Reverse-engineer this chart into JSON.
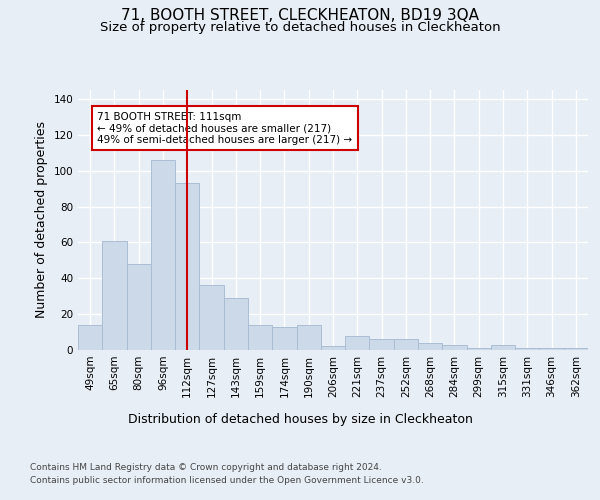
{
  "title_line1": "71, BOOTH STREET, CLECKHEATON, BD19 3QA",
  "title_line2": "Size of property relative to detached houses in Cleckheaton",
  "xlabel": "Distribution of detached houses by size in Cleckheaton",
  "ylabel": "Number of detached properties",
  "footer_line1": "Contains HM Land Registry data © Crown copyright and database right 2024.",
  "footer_line2": "Contains public sector information licensed under the Open Government Licence v3.0.",
  "categories": [
    "49sqm",
    "65sqm",
    "80sqm",
    "96sqm",
    "112sqm",
    "127sqm",
    "143sqm",
    "159sqm",
    "174sqm",
    "190sqm",
    "206sqm",
    "221sqm",
    "237sqm",
    "252sqm",
    "268sqm",
    "284sqm",
    "299sqm",
    "315sqm",
    "331sqm",
    "346sqm",
    "362sqm"
  ],
  "values": [
    14,
    61,
    48,
    106,
    93,
    36,
    29,
    14,
    13,
    14,
    2,
    8,
    6,
    6,
    4,
    3,
    1,
    3,
    1,
    1,
    1
  ],
  "bar_color": "#ccd9e8",
  "bar_edge_color": "#aabdd4",
  "vline_x_index": 4,
  "vline_color": "#cc0000",
  "annotation_text": "71 BOOTH STREET: 111sqm\n← 49% of detached houses are smaller (217)\n49% of semi-detached houses are larger (217) →",
  "annotation_box_color": "#ffffff",
  "annotation_box_edge_color": "#cc0000",
  "ylim": [
    0,
    145
  ],
  "yticks": [
    0,
    20,
    40,
    60,
    80,
    100,
    120,
    140
  ],
  "background_color": "#e8eef5",
  "plot_background_color": "#e8eef5",
  "grid_color": "#ffffff",
  "title_fontsize": 11,
  "subtitle_fontsize": 9.5,
  "axis_label_fontsize": 9,
  "tick_fontsize": 7.5,
  "footer_fontsize": 6.5,
  "annotation_fontsize": 7.5
}
